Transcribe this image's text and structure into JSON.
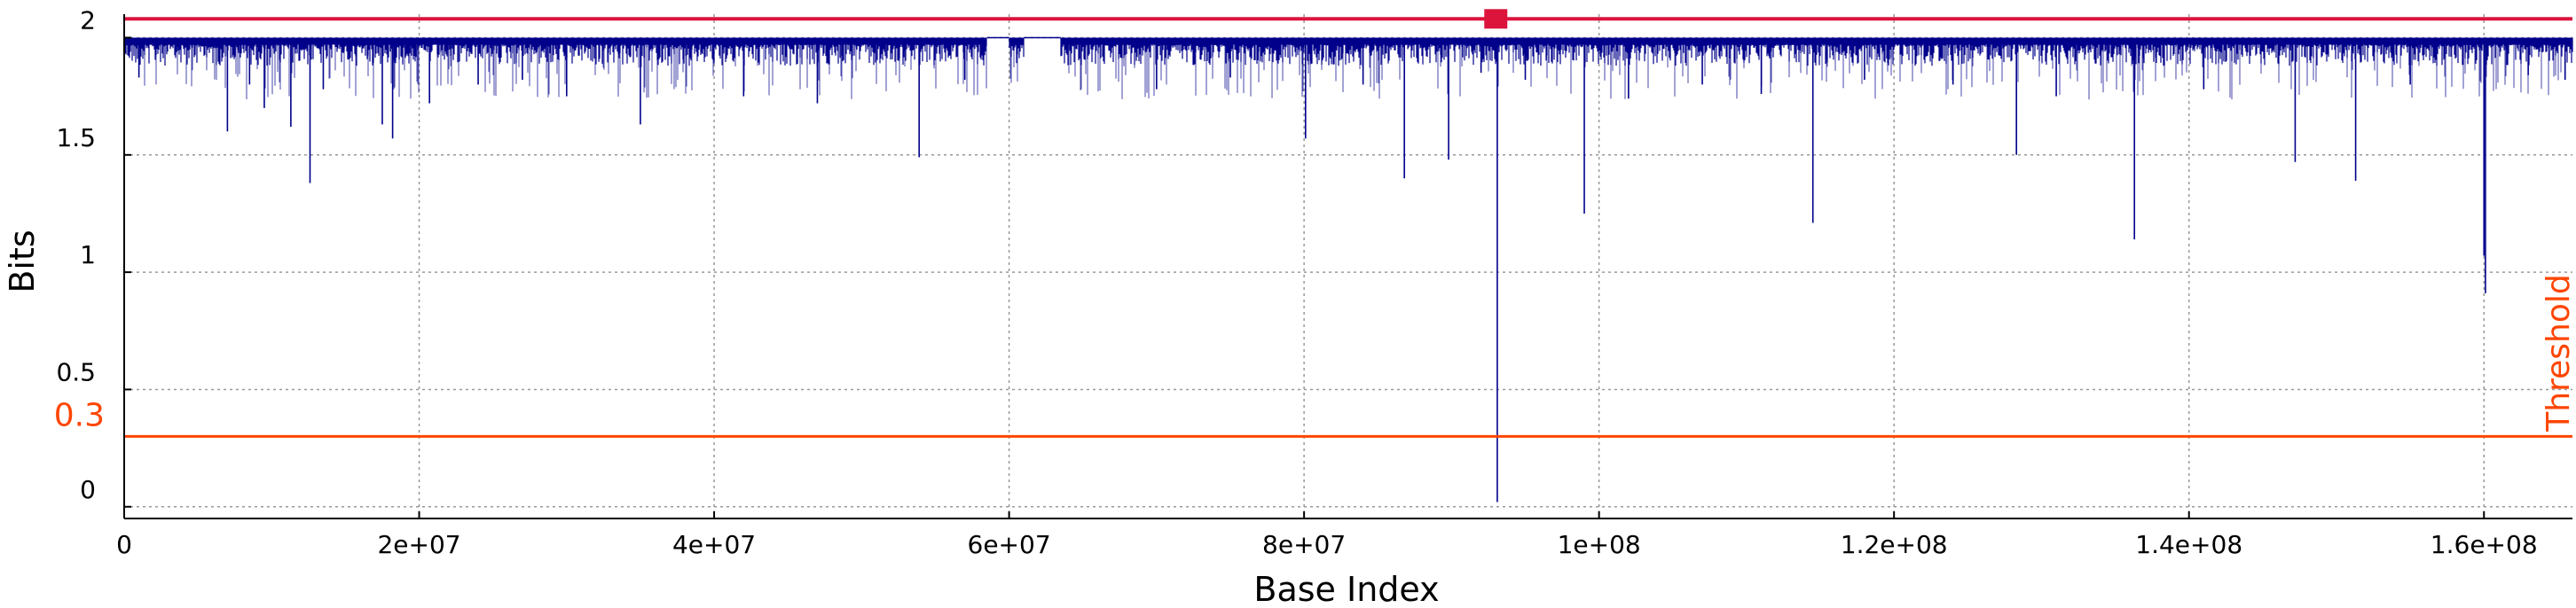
{
  "chart_data": {
    "type": "line",
    "title": "",
    "xlabel": "Base Index",
    "ylabel": "Bits",
    "xlim": [
      0,
      166000000
    ],
    "ylim": [
      -0.05,
      2.1
    ],
    "grid": true,
    "x_ticks": [
      {
        "value": 0,
        "label": "0"
      },
      {
        "value": 20000000,
        "label": "2e+07"
      },
      {
        "value": 40000000,
        "label": "4e+07"
      },
      {
        "value": 60000000,
        "label": "6e+07"
      },
      {
        "value": 80000000,
        "label": "8e+07"
      },
      {
        "value": 100000000,
        "label": "1e+08"
      },
      {
        "value": 120000000,
        "label": "1.2e+08"
      },
      {
        "value": 140000000,
        "label": "1.4e+08"
      },
      {
        "value": 160000000,
        "label": "1.6e+08"
      }
    ],
    "y_ticks": [
      {
        "value": 0,
        "label": "0"
      },
      {
        "value": 0.5,
        "label": "0.5"
      },
      {
        "value": 1,
        "label": "1"
      },
      {
        "value": 1.5,
        "label": "1.5"
      },
      {
        "value": 2,
        "label": "2"
      }
    ],
    "series": [
      {
        "color": "#00008b",
        "baseline": 2.0,
        "typical_min": 1.88,
        "gaps": [
          [
            58500000,
            60000000
          ],
          [
            61000000,
            63500000
          ]
        ],
        "dips": [
          [
            1000000,
            1.83
          ],
          [
            7000000,
            1.6
          ],
          [
            8500000,
            1.8
          ],
          [
            9500000,
            1.7
          ],
          [
            11300000,
            1.62
          ],
          [
            12600000,
            1.38
          ],
          [
            13500000,
            1.78
          ],
          [
            17500000,
            1.63
          ],
          [
            18200000,
            1.57
          ],
          [
            20700000,
            1.72
          ],
          [
            24000000,
            1.8
          ],
          [
            27000000,
            1.82
          ],
          [
            30000000,
            1.75
          ],
          [
            35000000,
            1.63
          ],
          [
            42000000,
            1.75
          ],
          [
            47000000,
            1.72
          ],
          [
            53900000,
            1.49
          ],
          [
            57000000,
            1.82
          ],
          [
            70000000,
            1.78
          ],
          [
            75000000,
            1.83
          ],
          [
            80100000,
            1.57
          ],
          [
            84000000,
            1.8
          ],
          [
            86800000,
            1.4
          ],
          [
            89800000,
            1.48
          ],
          [
            92000000,
            1.85
          ],
          [
            93100000,
            0.02
          ],
          [
            95000000,
            1.82
          ],
          [
            99000000,
            1.25
          ],
          [
            102000000,
            1.74
          ],
          [
            107000000,
            1.8
          ],
          [
            111000000,
            1.76
          ],
          [
            114500000,
            1.21
          ],
          [
            118000000,
            1.82
          ],
          [
            124000000,
            1.8
          ],
          [
            128300000,
            1.5
          ],
          [
            131000000,
            1.75
          ],
          [
            136300000,
            1.14
          ],
          [
            141000000,
            1.78
          ],
          [
            147200000,
            1.47
          ],
          [
            151300000,
            1.39
          ],
          [
            155000000,
            1.8
          ],
          [
            160000000,
            1.07
          ],
          [
            160100000,
            0.91
          ],
          [
            163000000,
            1.84
          ],
          [
            165500000,
            1.82
          ]
        ]
      }
    ],
    "threshold": {
      "value": 0.3,
      "label": "0.3",
      "name": "Threshold",
      "color": "#ff4500"
    },
    "top_line": {
      "value": 2.08,
      "color": "#dc143c"
    },
    "marker": {
      "x": 93000000,
      "y": 2.08,
      "color": "#dc143c",
      "shape": "square"
    }
  }
}
